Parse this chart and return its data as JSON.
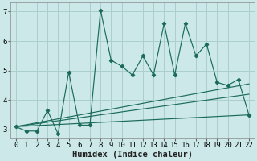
{
  "title": "",
  "xlabel": "Humidex (Indice chaleur)",
  "background_color": "#cce8e8",
  "grid_color": "#aacece",
  "line_color": "#1a6b5a",
  "xlim": [
    -0.5,
    22.5
  ],
  "ylim": [
    2.7,
    7.3
  ],
  "yticks": [
    3,
    4,
    5,
    6,
    7
  ],
  "xticks": [
    0,
    1,
    2,
    3,
    4,
    5,
    6,
    7,
    8,
    9,
    10,
    11,
    12,
    13,
    14,
    15,
    16,
    17,
    18,
    19,
    20,
    21,
    22
  ],
  "main_line": {
    "x": [
      0,
      1,
      2,
      3,
      4,
      5,
      6,
      7,
      8,
      9,
      10,
      11,
      12,
      13,
      14,
      15,
      16,
      17,
      18,
      19,
      20,
      21,
      22
    ],
    "y": [
      3.1,
      2.95,
      2.95,
      3.65,
      2.85,
      4.95,
      3.15,
      3.15,
      7.05,
      5.35,
      5.15,
      4.85,
      5.5,
      4.85,
      6.6,
      4.85,
      6.6,
      5.5,
      5.9,
      4.6,
      4.5,
      4.7,
      3.5
    ]
  },
  "trend_line1": {
    "x": [
      0,
      22
    ],
    "y": [
      3.1,
      4.55
    ]
  },
  "trend_line2": {
    "x": [
      0,
      22
    ],
    "y": [
      3.1,
      4.2
    ]
  },
  "trend_line3": {
    "x": [
      0,
      22
    ],
    "y": [
      3.1,
      3.5
    ]
  },
  "tick_fontsize": 6.5,
  "label_fontsize": 7.5
}
